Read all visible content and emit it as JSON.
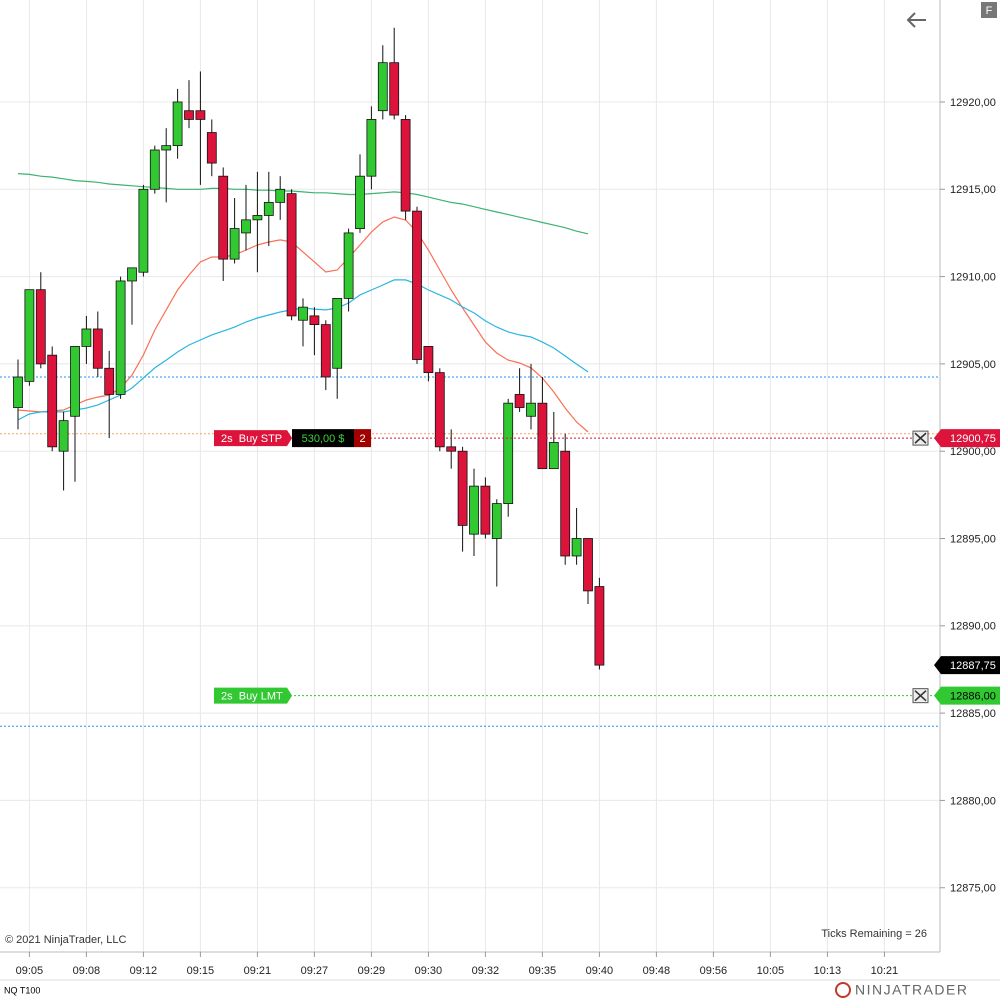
{
  "chart_data": {
    "type": "candlestick",
    "instrument": "NQ T100",
    "copyright": "© 2021 NinjaTrader, LLC",
    "ticks_remaining": "Ticks Remaining = 26",
    "logo": "NINJATRADER",
    "button": "F",
    "up_color": "#32c832",
    "down_color": "#dc143c",
    "grid": true,
    "ylim": [
      12871.32,
      12925.84
    ],
    "yticks": [
      {
        "value": 12875,
        "label": "12875,00"
      },
      {
        "value": 12880,
        "label": "12880,00"
      },
      {
        "value": 12885,
        "label": "12885,00"
      },
      {
        "value": 12890,
        "label": "12890,00"
      },
      {
        "value": 12895,
        "label": "12895,00"
      },
      {
        "value": 12900,
        "label": "12900,00"
      },
      {
        "value": 12905,
        "label": "12905,00"
      },
      {
        "value": 12910,
        "label": "12910,00"
      },
      {
        "value": 12915,
        "label": "12915,00"
      },
      {
        "value": 12920,
        "label": "12920,00"
      }
    ],
    "categories": [
      null,
      "09:05",
      null,
      null,
      null,
      null,
      "09:08",
      null,
      null,
      null,
      null,
      "09:12",
      null,
      null,
      null,
      null,
      "09:15",
      null,
      null,
      null,
      null,
      "09:21",
      null,
      null,
      null,
      null,
      "09:27",
      null,
      null,
      null,
      null,
      "09:29",
      null,
      null,
      null,
      null,
      "09:30",
      null,
      null,
      null,
      null,
      "09:32",
      null,
      null,
      null,
      null,
      "09:35",
      null,
      null,
      null,
      null,
      "09:40",
      null,
      null,
      null,
      null,
      "09:48",
      null,
      null,
      null,
      null,
      "09:56",
      null,
      null,
      null,
      null,
      "10:05",
      null,
      null,
      null,
      null,
      "10:13",
      null,
      null,
      null,
      null,
      "10:21"
    ],
    "open": [
      12902.5,
      12904,
      12909.25,
      12905.5,
      12900,
      12902,
      12906,
      12907,
      12904.75,
      12903.25,
      12909.75,
      12910.25,
      12915,
      12917.25,
      12917.5,
      12919.5,
      12919.5,
      12918.25,
      12915.75,
      12911,
      12912.5,
      12913.25,
      12913.5,
      12914.25,
      12914.75,
      12907.5,
      12907.75,
      12907.25,
      12904.75,
      12908.75,
      12912.75,
      12915.75,
      12919.5,
      12922.25,
      12919,
      12913.75,
      12906,
      12904.5,
      12900.25,
      12900,
      12895.25,
      12898,
      12895,
      12897,
      12903.25,
      12902,
      12902.75,
      12899,
      12900,
      12894,
      12895,
      12892.25,
      null,
      null,
      null,
      null,
      null,
      null,
      null,
      null,
      null,
      null,
      null,
      null,
      null,
      null,
      null,
      null,
      null,
      null,
      null,
      null,
      null,
      null,
      null,
      null,
      null
    ],
    "high": [
      12905.25,
      12909.25,
      12910.25,
      12906,
      12902.25,
      12906,
      12907.75,
      12908,
      12905.75,
      12910,
      12910.5,
      12915.25,
      12917.5,
      12918.5,
      12920.75,
      12921.25,
      12921.75,
      12919,
      12916.25,
      12914.5,
      12915.25,
      12916,
      12916,
      12915.75,
      12915,
      12908.75,
      12908.25,
      12907.5,
      12908.75,
      12912.75,
      12917,
      12919.75,
      12923.25,
      12924.25,
      12919.25,
      12914,
      12906,
      12904.75,
      12901.25,
      12900.25,
      12899,
      12898.5,
      12897.25,
      12903,
      12904.75,
      12905,
      12904.25,
      12902.25,
      12901,
      12896.75,
      12895,
      12892.75,
      null,
      null,
      null,
      null,
      null,
      null,
      null,
      null,
      null,
      null,
      null,
      null,
      null,
      null,
      null,
      null,
      null,
      null,
      null,
      null,
      null,
      null,
      null,
      null,
      null
    ],
    "low": [
      12901.25,
      12903.75,
      12904.75,
      12900,
      12897.75,
      12898.25,
      12905,
      12904.25,
      12900.75,
      12903,
      12907.25,
      12910,
      12914.75,
      12914.25,
      12916.75,
      12918.5,
      12915.25,
      12915.75,
      12909.75,
      12910.75,
      12911.5,
      12910.25,
      12911.75,
      12913.25,
      12907.5,
      12906,
      12905.5,
      12903.5,
      12903,
      12908,
      12912.5,
      12915,
      12919,
      12919,
      12913.25,
      12905,
      12904,
      12900,
      12899,
      12894.25,
      12894,
      12895,
      12892.25,
      12896.25,
      12902.25,
      12901.25,
      12899,
      12899,
      12893.5,
      12893.5,
      12891.25,
      12887.5,
      null,
      null,
      null,
      null,
      null,
      null,
      null,
      null,
      null,
      null,
      null,
      null,
      null,
      null,
      null,
      null,
      null,
      null,
      null,
      null,
      null,
      null,
      null,
      null,
      null
    ],
    "close": [
      12904.25,
      12909.25,
      12905,
      12900.25,
      12901.75,
      12906,
      12907,
      12904.75,
      12903.25,
      12909.75,
      12910.5,
      12915,
      12917.25,
      12917.5,
      12920,
      12919,
      12919,
      12916.5,
      12911,
      12912.75,
      12913.25,
      12913.5,
      12914.25,
      12915,
      12907.75,
      12908.25,
      12907.25,
      12904.25,
      12908.75,
      12912.5,
      12915.75,
      12919,
      12922.25,
      12919.25,
      12913.75,
      12905.25,
      12904.5,
      12900.25,
      12900,
      12895.75,
      12898,
      12895.25,
      12897,
      12902.75,
      12902.5,
      12902.75,
      12899,
      12900.5,
      12894,
      12895,
      12892,
      12887.75,
      null,
      null,
      null,
      null,
      null,
      null,
      null,
      null,
      null,
      null,
      null,
      null,
      null,
      null,
      null,
      null,
      null,
      null,
      null,
      null,
      null,
      null,
      null,
      null,
      null
    ],
    "lines": [
      {
        "color": "#3cb371",
        "values": [
          12915.9,
          12915.85,
          12915.75,
          12915.7,
          12915.6,
          12915.5,
          12915.45,
          12915.4,
          12915.3,
          12915.25,
          12915.2,
          12915.15,
          12915.1,
          12915.05,
          12915.0,
          12915.0,
          12915.0,
          12915.05,
          12915.05,
          12915.0,
          12915.0,
          12914.95,
          12914.95,
          12914.9,
          12914.9,
          12914.85,
          12914.8,
          12914.8,
          12914.75,
          12914.7,
          12914.7,
          12914.75,
          12914.8,
          12914.85,
          12914.8,
          12914.7,
          12914.55,
          12914.4,
          12914.25,
          12914.15,
          12914.0,
          12913.85,
          12913.7,
          12913.55,
          12913.4,
          12913.25,
          12913.1,
          12912.95,
          12912.8,
          12912.6,
          12912.45,
          null,
          null,
          null,
          null,
          null,
          null,
          null,
          null,
          null,
          null,
          null,
          null,
          null,
          null,
          null,
          null,
          null,
          null,
          null,
          null,
          null,
          null,
          null,
          null,
          null,
          null
        ]
      },
      {
        "color": "#fa7055",
        "values": [
          12902.36,
          12902.3,
          12902.25,
          12902.3,
          12902.36,
          12902.65,
          12902.93,
          12903.1,
          12903.22,
          12903.62,
          12904.36,
          12905.51,
          12906.94,
          12908.09,
          12909.23,
          12910.09,
          12910.84,
          12911.12,
          12911.12,
          12911.24,
          12911.52,
          12911.81,
          12911.98,
          12912.1,
          12911.98,
          12911.41,
          12910.84,
          12910.26,
          12910.38,
          12911.07,
          12911.81,
          12912.55,
          12913.13,
          12913.41,
          12913.24,
          12912.55,
          12911.52,
          12910.38,
          12909.23,
          12908.2,
          12907.23,
          12906.25,
          12905.62,
          12905.22,
          12905.05,
          12904.77,
          12904.19,
          12903.39,
          12902.47,
          12901.67,
          12901.1,
          null,
          null,
          null,
          null,
          null,
          null,
          null,
          null,
          null,
          null,
          null,
          null,
          null,
          null,
          null,
          null,
          null,
          null,
          null,
          null,
          null,
          null,
          null,
          null,
          null,
          null
        ]
      },
      {
        "color": "#29b6e0",
        "values": [
          12901.79,
          12902.13,
          12902.25,
          12902.25,
          12902.25,
          12902.36,
          12902.47,
          12902.65,
          12902.93,
          12903.22,
          12903.62,
          12904.19,
          12904.77,
          12905.22,
          12905.68,
          12906.08,
          12906.37,
          12906.66,
          12906.88,
          12907.11,
          12907.4,
          12907.63,
          12907.8,
          12907.97,
          12908.09,
          12908.2,
          12908.14,
          12908.09,
          12908.2,
          12908.49,
          12908.95,
          12909.23,
          12909.52,
          12909.81,
          12909.81,
          12909.58,
          12909.23,
          12908.95,
          12908.66,
          12908.26,
          12907.92,
          12907.46,
          12907.11,
          12906.83,
          12906.66,
          12906.54,
          12906.25,
          12905.91,
          12905.45,
          12904.99,
          12904.54,
          null,
          null,
          null,
          null,
          null,
          null,
          null,
          null,
          null,
          null,
          null,
          null,
          null,
          null,
          null,
          null,
          null,
          null,
          null,
          null,
          null,
          null,
          null,
          null,
          null,
          null
        ]
      }
    ],
    "levels": [
      {
        "value": 12904.25,
        "color": "#1e90ff"
      },
      {
        "value": 12884.25,
        "color": "#1e90ff"
      },
      {
        "value": 12901,
        "color": "#f4a460"
      }
    ],
    "orders": [
      {
        "label": "2s  Buy STP",
        "value": 12900.75,
        "value_label": "12900,75",
        "color": "#dc143c",
        "pnl": "530,00 $",
        "quantity": 2
      },
      {
        "label": "2s  Buy LMT",
        "value": 12886,
        "value_label": "12886,00",
        "color": "#32c832"
      }
    ],
    "last_price": {
      "value": 12887.75,
      "label": "12887,75"
    }
  }
}
